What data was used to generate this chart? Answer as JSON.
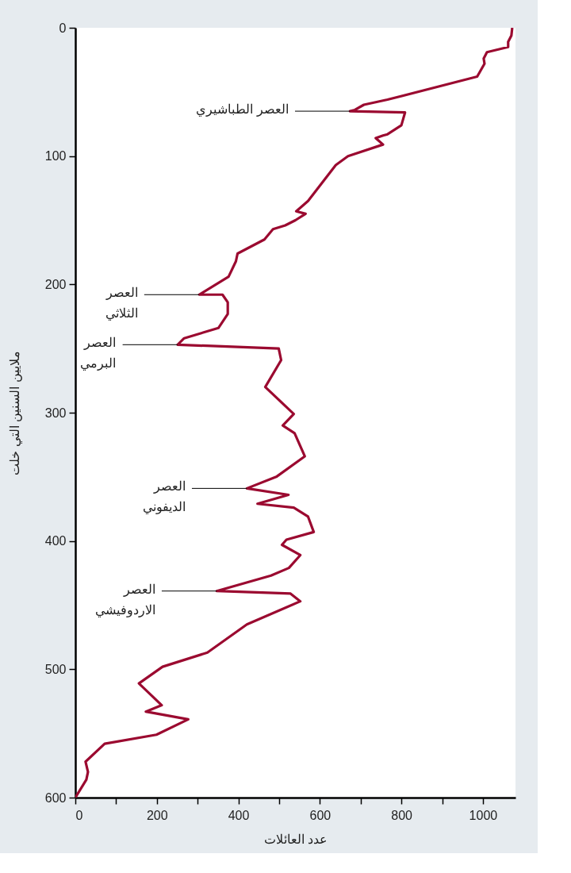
{
  "chart_data": {
    "type": "line",
    "xlabel": "عدد العائلات",
    "ylabel": "ملايين السنين التي خلت",
    "xlim": [
      0,
      1080
    ],
    "ylim": [
      600,
      0
    ],
    "xticks": [
      0,
      {
        "value": 100,
        "label": null
      },
      200,
      {
        "value": 300,
        "label": null
      },
      400,
      {
        "value": 500,
        "label": null
      },
      600,
      {
        "value": 700,
        "label": null
      },
      800,
      {
        "value": 900,
        "label": null
      },
      1000
    ],
    "yticks": [
      0,
      100,
      200,
      300,
      400,
      500,
      600
    ],
    "grid": false,
    "series": [
      {
        "color": "#9b0a30",
        "x": [
          1072,
          1070,
          1062,
          1062,
          1010,
          1002,
          1004,
          986,
          766,
          708,
          686,
          674,
          809,
          800,
          766,
          755,
          737,
          755,
          669,
          639,
          571,
          542,
          565,
          540,
          515,
          485,
          464,
          398,
          394,
          376,
          304,
          361,
          374,
          374,
          351,
          267,
          251,
          499,
          505,
          466,
          536,
          509,
          538,
          563,
          493,
          421,
          523,
          447,
          536,
          571,
          585,
          518,
          507,
          552,
          524,
          480,
          347,
          528,
          552,
          421,
          324,
          214,
          156,
          212,
          173,
          277,
          199,
          72,
          25,
          31,
          27,
          0
        ],
        "values": [
          0,
          6,
          11,
          15,
          19,
          24,
          28,
          38,
          56,
          60,
          64,
          65,
          66,
          76,
          83,
          84,
          86,
          91,
          100,
          107,
          135,
          143,
          145,
          150,
          154,
          157,
          165,
          176,
          182,
          194,
          208,
          208,
          214,
          223,
          234,
          242,
          247,
          250,
          259,
          280,
          301,
          310,
          316,
          334,
          350,
          359,
          364,
          371,
          374,
          381,
          393,
          399,
          403,
          411,
          421,
          427,
          439,
          441,
          447,
          465,
          487,
          498,
          511,
          528,
          533,
          539,
          551,
          558,
          572,
          580,
          586,
          600
        ]
      }
    ],
    "annotations": [
      {
        "text": "العصر الطباشيري",
        "x": 674,
        "y": 65
      },
      {
        "text": "العصر\nالثلاثي",
        "x": 304,
        "y": 208
      },
      {
        "text": "العصر\nالبرمي",
        "x": 251,
        "y": 247
      },
      {
        "text": "العصر\nالديفوني",
        "x": 421,
        "y": 359
      },
      {
        "text": "العصر\nالاردوفيشي",
        "x": 347,
        "y": 439
      }
    ]
  }
}
